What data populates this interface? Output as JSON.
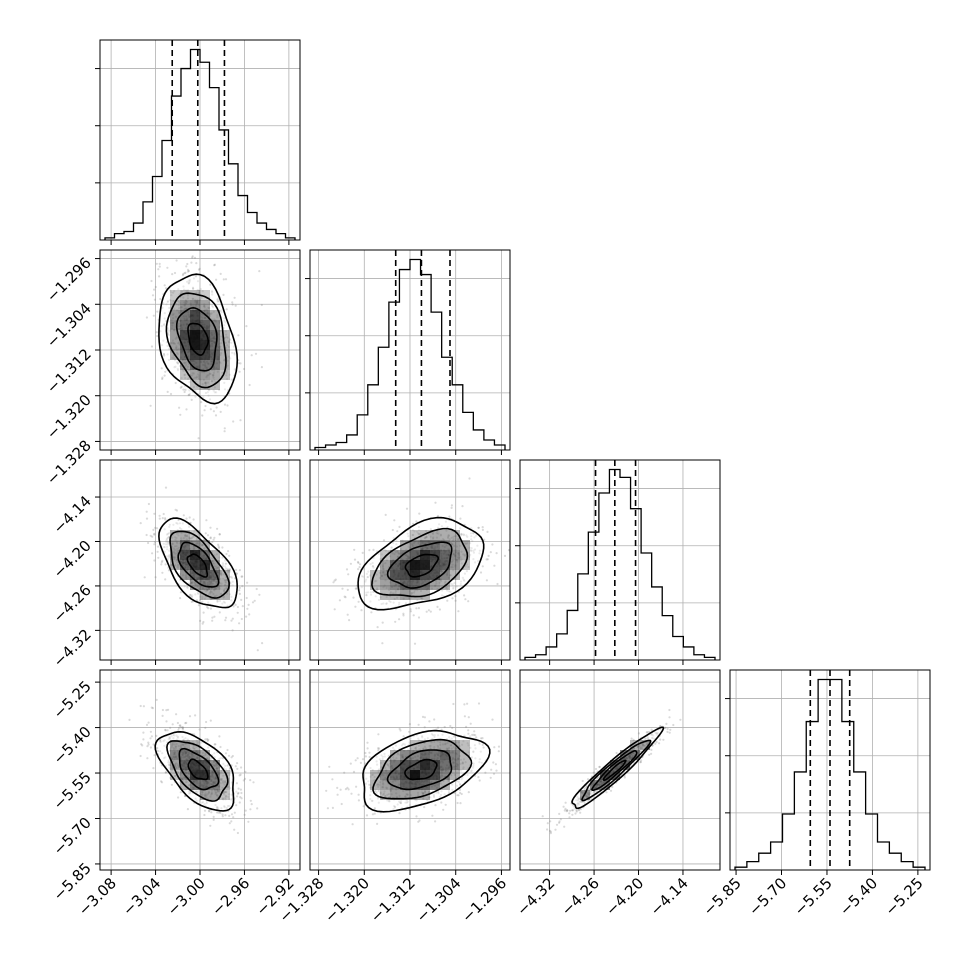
{
  "chart_data": {
    "type": "corner",
    "parameters": [
      {
        "range": [
          -3.09,
          -2.91
        ],
        "ticks": [
          -3.08,
          -3.04,
          -3.0,
          -2.96,
          -2.92
        ],
        "tick_labels": [
          "−3.08",
          "−3.04",
          "−3.00",
          "−2.96",
          "−2.92"
        ],
        "quantiles": [
          -3.025,
          -3.002,
          -2.978
        ]
      },
      {
        "range": [
          -1.3295,
          -1.2945
        ],
        "ticks": [
          -1.328,
          -1.32,
          -1.312,
          -1.304,
          -1.296
        ],
        "tick_labels": [
          "−1.328",
          "−1.320",
          "−1.312",
          "−1.304",
          "−1.296"
        ],
        "quantiles": [
          -1.3145,
          -1.31,
          -1.305
        ]
      },
      {
        "range": [
          -4.36,
          -4.09
        ],
        "ticks": [
          -4.32,
          -4.26,
          -4.2,
          -4.14
        ],
        "tick_labels": [
          "−4.32",
          "−4.26",
          "−4.20",
          "−4.14"
        ],
        "quantiles": [
          -4.258,
          -4.232,
          -4.204
        ]
      },
      {
        "range": [
          -5.87,
          -5.21
        ],
        "ticks": [
          -5.85,
          -5.7,
          -5.55,
          -5.4,
          -5.25
        ],
        "tick_labels": [
          "−5.85",
          "−5.70",
          "−5.55",
          "−5.40",
          "−5.25"
        ],
        "quantiles": [
          -5.605,
          -5.54,
          -5.475
        ]
      }
    ],
    "histograms": [
      {
        "counts": [
          1,
          3,
          4,
          8,
          18,
          30,
          47,
          68,
          81,
          90,
          84,
          72,
          52,
          36,
          21,
          13,
          8,
          5,
          3,
          1
        ]
      },
      {
        "counts": [
          1,
          2,
          3,
          6,
          14,
          26,
          41,
          59,
          72,
          76,
          70,
          55,
          37,
          26,
          15,
          8,
          4,
          2
        ]
      },
      {
        "counts": [
          1,
          2,
          5,
          10,
          19,
          33,
          49,
          64,
          73,
          70,
          58,
          41,
          28,
          17,
          9,
          5,
          2,
          1
        ]
      },
      {
        "counts": [
          1,
          3,
          6,
          10,
          20,
          35,
          53,
          68,
          68,
          53,
          35,
          20,
          10,
          6,
          3,
          1
        ]
      }
    ],
    "scatter_pairs": [
      {
        "x": 0,
        "y": 1,
        "mean": [
          -3.002,
          -1.31
        ],
        "std": [
          0.0175,
          0.0055
        ],
        "corr": -0.28
      },
      {
        "x": 0,
        "y": 2,
        "mean": [
          -3.002,
          -4.232
        ],
        "std": [
          0.0175,
          0.03
        ],
        "corr": -0.6
      },
      {
        "x": 1,
        "y": 2,
        "mean": [
          -1.31,
          -4.232
        ],
        "std": [
          0.0055,
          0.03
        ],
        "corr": 0.42
      },
      {
        "x": 0,
        "y": 3,
        "mean": [
          -3.002,
          -5.54
        ],
        "std": [
          0.0175,
          0.065
        ],
        "corr": -0.55
      },
      {
        "x": 1,
        "y": 3,
        "mean": [
          -1.31,
          -5.54
        ],
        "std": [
          0.0055,
          0.065
        ],
        "corr": 0.4
      },
      {
        "x": 2,
        "y": 3,
        "mean": [
          -4.232,
          -5.54
        ],
        "std": [
          0.03,
          0.065
        ],
        "corr": 0.95
      }
    ],
    "contour_levels_sigma": [
      0.5,
      1.0,
      1.5,
      2.0
    ],
    "grid": true,
    "colors": {
      "line": "#000000",
      "grid": "#b0b0b0",
      "points": "#7a7a7a",
      "density": "#000000"
    }
  }
}
